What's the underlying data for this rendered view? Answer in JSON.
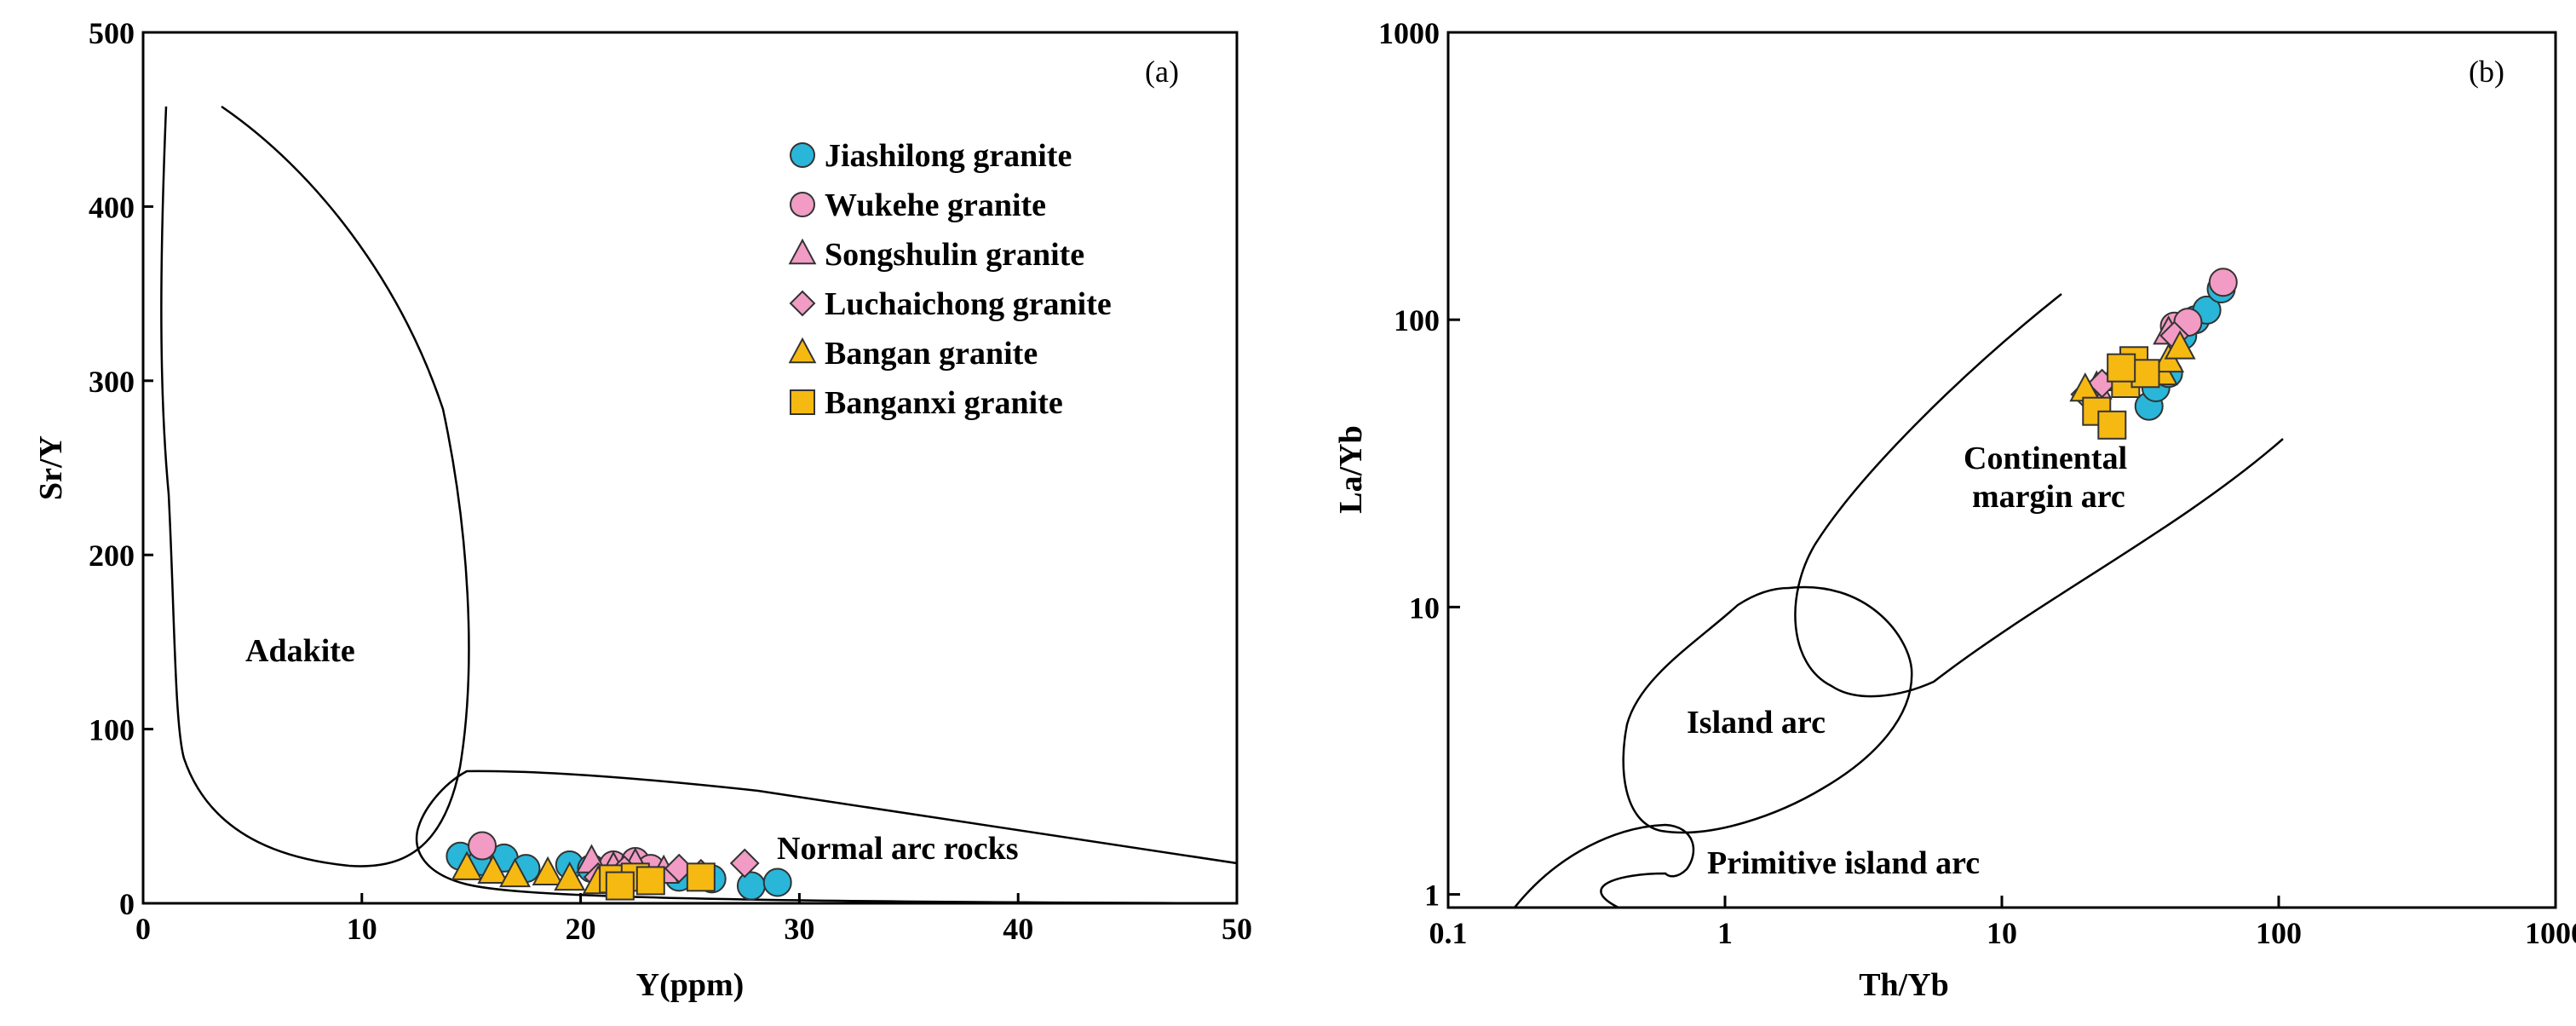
{
  "chart_data": [
    {
      "id": "a",
      "type": "scatter",
      "panel_label": "(a)",
      "xlabel": "Y(ppm)",
      "ylabel": "Sr/Y",
      "xlim": [
        0,
        50
      ],
      "ylim": [
        0,
        500
      ],
      "xticks": [
        "0",
        "10",
        "20",
        "30",
        "40",
        "50"
      ],
      "yticks": [
        "0",
        "100",
        "200",
        "300",
        "400",
        "500"
      ],
      "grid": false,
      "legend_position": "top-right",
      "field_labels": [
        "Adakite",
        "Normal arc rocks"
      ],
      "series": [
        {
          "name": "Jiashilong granite",
          "marker": "circle",
          "color": "#29b6d8",
          "points": [
            [
              14.5,
              27
            ],
            [
              15.5,
              24
            ],
            [
              16.5,
              26
            ],
            [
              17.5,
              20
            ],
            [
              19.5,
              22
            ],
            [
              20.5,
              20
            ],
            [
              22,
              18
            ],
            [
              23,
              17
            ],
            [
              24.5,
              15
            ],
            [
              26,
              14
            ],
            [
              27.8,
              10
            ],
            [
              29,
              12
            ]
          ]
        },
        {
          "name": "Wukehe granite",
          "marker": "circle",
          "color": "#f29bc4",
          "points": [
            [
              15.5,
              33
            ],
            [
              21.5,
              22
            ],
            [
              22.5,
              24
            ],
            [
              23.2,
              20
            ]
          ]
        },
        {
          "name": "Songshulin granite",
          "marker": "triangle",
          "color": "#f29bc4",
          "points": [
            [
              20.5,
              24
            ],
            [
              21.5,
              20
            ],
            [
              22.5,
              22
            ],
            [
              23.8,
              18
            ]
          ]
        },
        {
          "name": "Luchaichong granite",
          "marker": "diamond",
          "color": "#f29bc4",
          "points": [
            [
              20.8,
              15
            ],
            [
              22,
              19
            ],
            [
              24.5,
              20
            ],
            [
              25.5,
              17
            ],
            [
              27.5,
              23
            ]
          ]
        },
        {
          "name": "Bangan granite",
          "marker": "triangle",
          "color": "#f6b912",
          "points": [
            [
              14.8,
              20
            ],
            [
              16,
              18
            ],
            [
              17,
              16
            ],
            [
              18.5,
              17
            ],
            [
              19.5,
              14
            ],
            [
              20.8,
              12
            ]
          ]
        },
        {
          "name": "Banganxi granite",
          "marker": "square",
          "color": "#f6b912",
          "points": [
            [
              21.5,
              14
            ],
            [
              22.5,
              15
            ],
            [
              23.2,
              13
            ],
            [
              25.5,
              15
            ],
            [
              21.8,
              10
            ]
          ]
        }
      ]
    },
    {
      "id": "b",
      "type": "scatter",
      "panel_label": "(b)",
      "xlabel": "Th/Yb",
      "ylabel": "La/Yb",
      "xscale": "log",
      "yscale": "log",
      "xlim": [
        0.1,
        1000
      ],
      "ylim": [
        0.9,
        1000
      ],
      "xticks": [
        "0.1",
        "1",
        "10",
        "100",
        "1000"
      ],
      "yticks": [
        "1",
        "10",
        "100",
        "1000"
      ],
      "grid": false,
      "field_labels": [
        "Continental margin arc",
        "Island arc",
        "Primitive island arc"
      ],
      "field_label_lines": {
        "continental": [
          "Continental",
          "margin arc"
        ]
      },
      "series": [
        {
          "name": "Jiashilong granite",
          "marker": "circle",
          "color": "#29b6d8",
          "points": [
            [
              34,
              50
            ],
            [
              36,
              58
            ],
            [
              40,
              65
            ],
            [
              45,
              88
            ],
            [
              50,
              100
            ],
            [
              55,
              108
            ],
            [
              62,
              128
            ]
          ]
        },
        {
          "name": "Wukehe granite",
          "marker": "circle",
          "color": "#f29bc4",
          "points": [
            [
              42,
              95
            ],
            [
              47,
              98
            ],
            [
              63,
              135
            ]
          ]
        },
        {
          "name": "Songshulin granite",
          "marker": "triangle",
          "color": "#f29bc4",
          "points": [
            [
              22,
              58
            ],
            [
              25,
              62
            ],
            [
              40,
              90
            ]
          ]
        },
        {
          "name": "Luchaichong granite",
          "marker": "diamond",
          "color": "#f29bc4",
          "points": [
            [
              20,
              55
            ],
            [
              23,
              60
            ],
            [
              42,
              88
            ]
          ]
        },
        {
          "name": "Bangan granite",
          "marker": "triangle",
          "color": "#f6b912",
          "points": [
            [
              20,
              57
            ],
            [
              38,
              65
            ],
            [
              40,
              72
            ],
            [
              44,
              80
            ]
          ]
        },
        {
          "name": "Banganxi granite",
          "marker": "square",
          "color": "#f6b912",
          "points": [
            [
              22,
              48
            ],
            [
              25,
              43
            ],
            [
              28,
              60
            ],
            [
              30,
              72
            ],
            [
              33,
              65
            ],
            [
              27,
              68
            ]
          ]
        }
      ]
    }
  ]
}
